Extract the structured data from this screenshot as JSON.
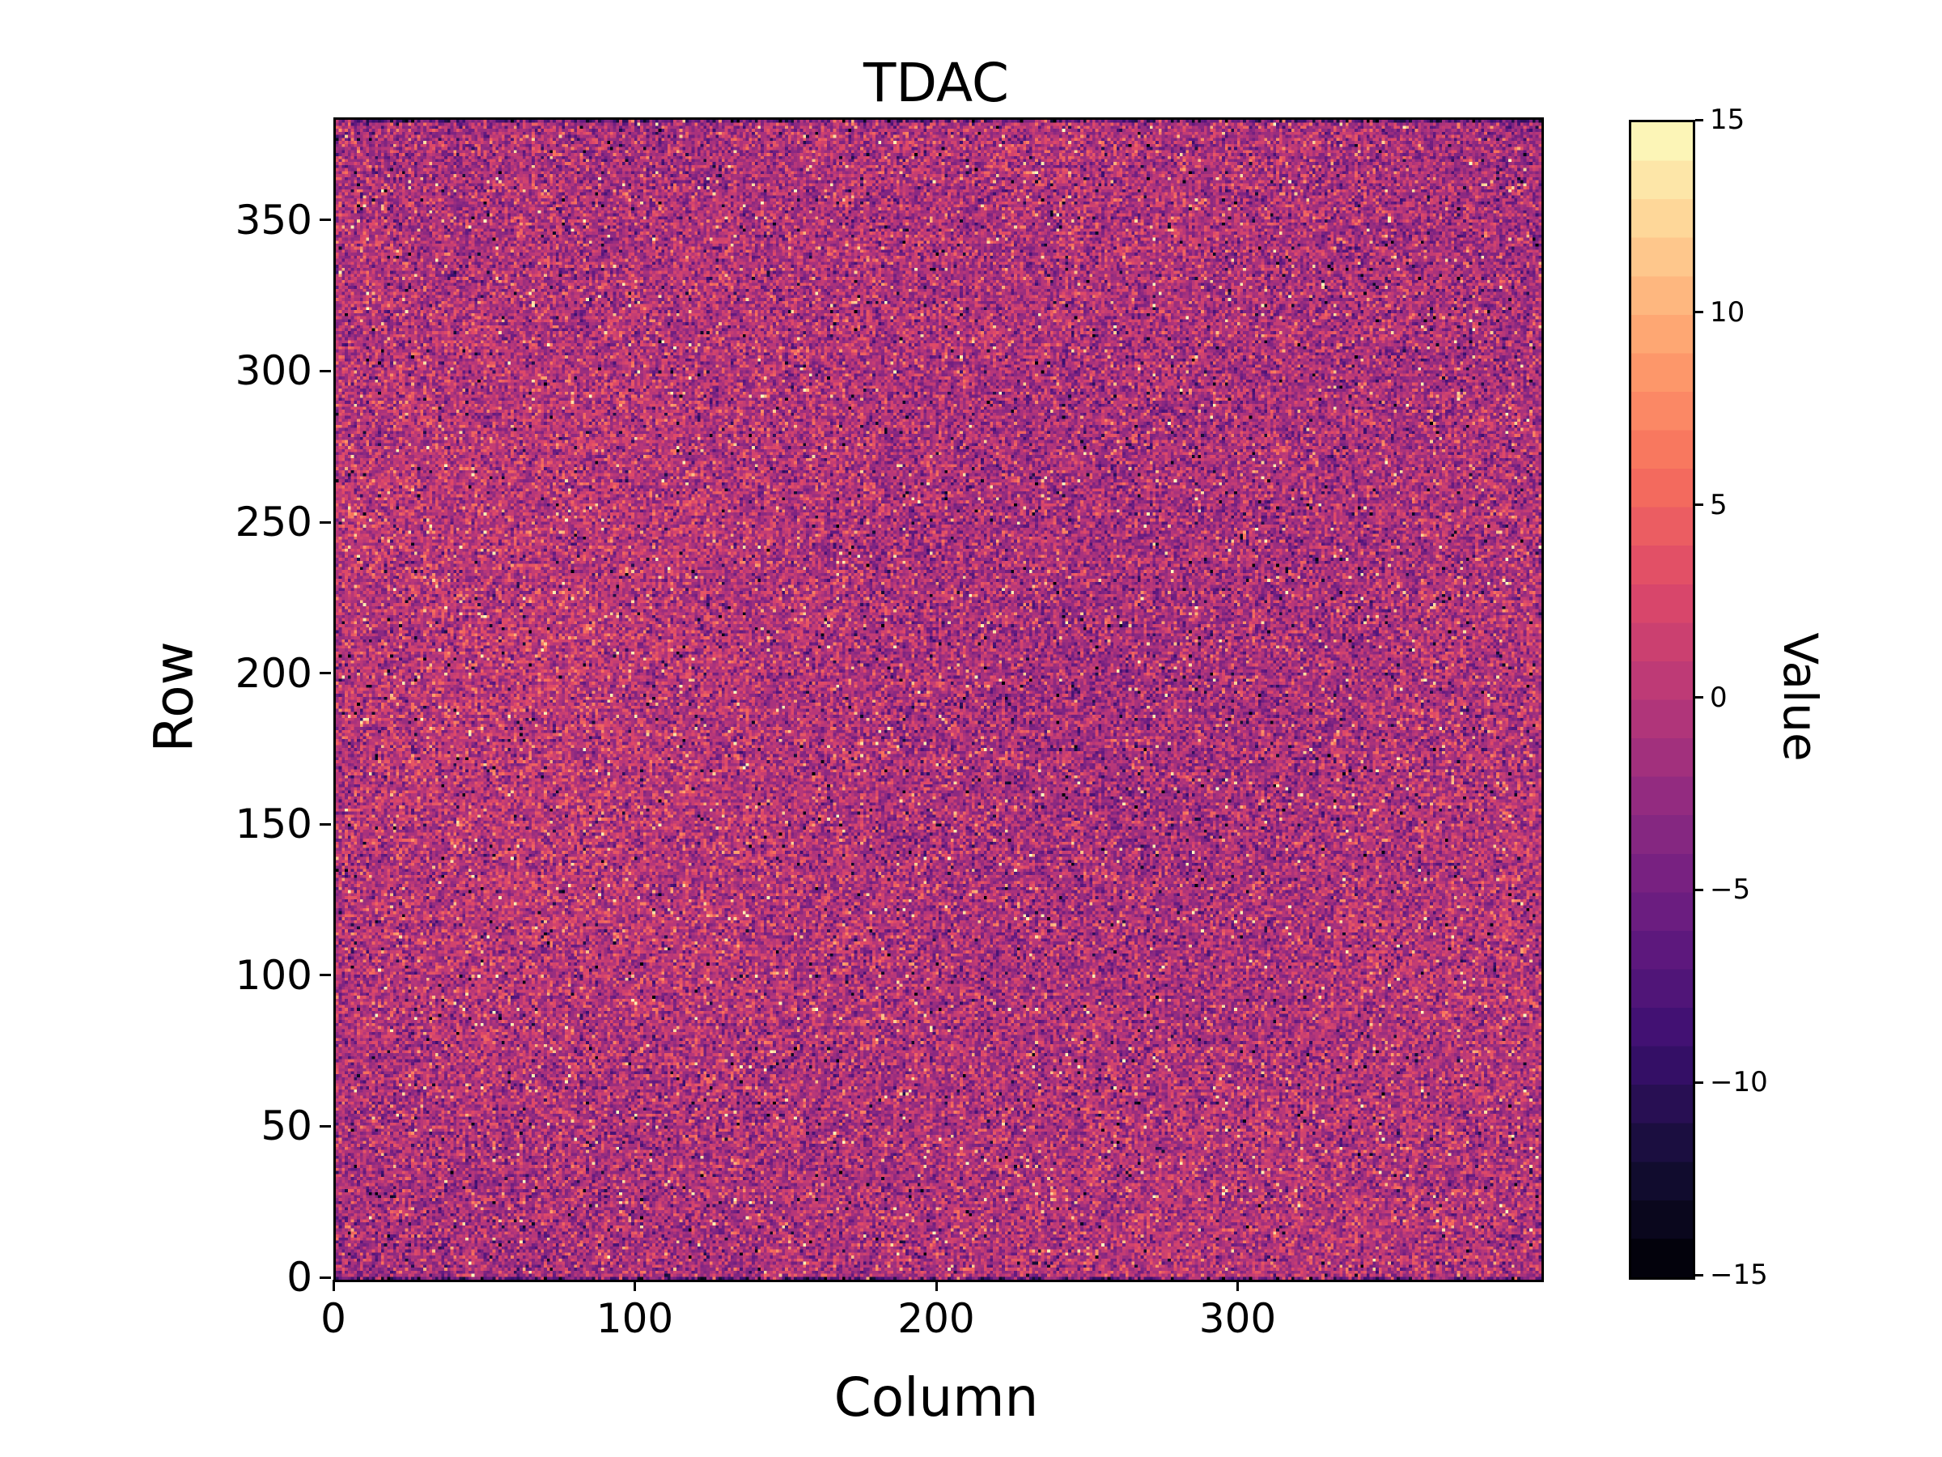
{
  "chart_data": {
    "type": "heatmap",
    "title": "TDAC",
    "xlabel": "Column",
    "ylabel": "Row",
    "colorbar_label": "Value",
    "x_range": [
      0,
      400
    ],
    "y_range": [
      0,
      384
    ],
    "value_range": [
      -15,
      15
    ],
    "x_ticks": [
      0,
      100,
      200,
      300
    ],
    "y_ticks": [
      0,
      50,
      100,
      150,
      200,
      250,
      300,
      350
    ],
    "colorbar_ticks": [
      15,
      10,
      5,
      0,
      -5,
      -10,
      -15
    ],
    "n_color_levels": 30,
    "grid": false,
    "legend": "colorbar-right",
    "noise": {
      "distribution": "gaussian",
      "mean": -0.8,
      "std": 3.2,
      "outlier_fraction": 0.055,
      "low_freq_amplitude": 0.9,
      "edge_dark_rows": 1,
      "edge_dark_strength": 5,
      "seed": 42
    },
    "colormap": {
      "name": "magma",
      "anchors": [
        [
          0.0,
          "#000004"
        ],
        [
          0.1,
          "#140e36"
        ],
        [
          0.2,
          "#3b0f70"
        ],
        [
          0.3,
          "#641a80"
        ],
        [
          0.4,
          "#8c2981"
        ],
        [
          0.5,
          "#b73779"
        ],
        [
          0.6,
          "#de4968"
        ],
        [
          0.7,
          "#f7705c"
        ],
        [
          0.8,
          "#fe9f6d"
        ],
        [
          0.9,
          "#fecf92"
        ],
        [
          1.0,
          "#fcfdbf"
        ]
      ]
    }
  }
}
